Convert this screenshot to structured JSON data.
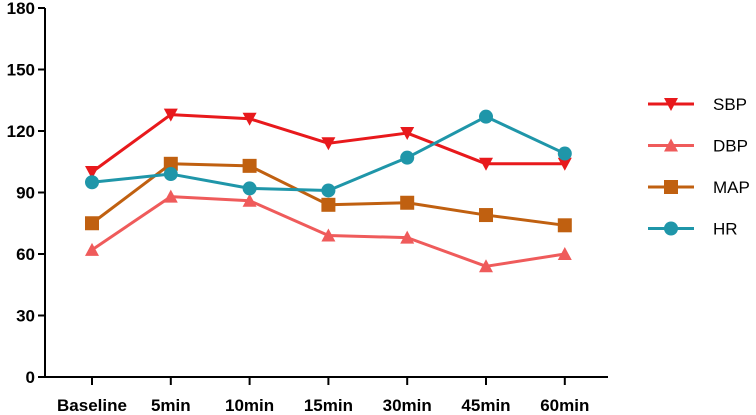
{
  "chart_data": {
    "type": "line",
    "categories": [
      "Baseline",
      "5min",
      "10min",
      "15min",
      "30min",
      "45min",
      "60min"
    ],
    "yticks": [
      "0",
      "30",
      "60",
      "90",
      "120",
      "150",
      "180"
    ],
    "ylim": [
      0,
      180
    ],
    "grid": false,
    "legend_position": "right",
    "series": [
      {
        "name": "SBP",
        "color": "#e8191c",
        "marker": "triangle-down",
        "values": [
          100,
          128,
          126,
          114,
          119,
          104,
          104
        ]
      },
      {
        "name": "DBP",
        "color": "#ef5b5b",
        "marker": "triangle-up",
        "values": [
          62,
          88,
          86,
          69,
          68,
          54,
          60
        ]
      },
      {
        "name": "MAP",
        "color": "#c06010",
        "marker": "square",
        "values": [
          75,
          104,
          103,
          84,
          85,
          79,
          74
        ]
      },
      {
        "name": "HR",
        "color": "#1f96a9",
        "marker": "circle",
        "values": [
          95,
          99,
          92,
          91,
          107,
          127,
          109
        ]
      }
    ]
  }
}
